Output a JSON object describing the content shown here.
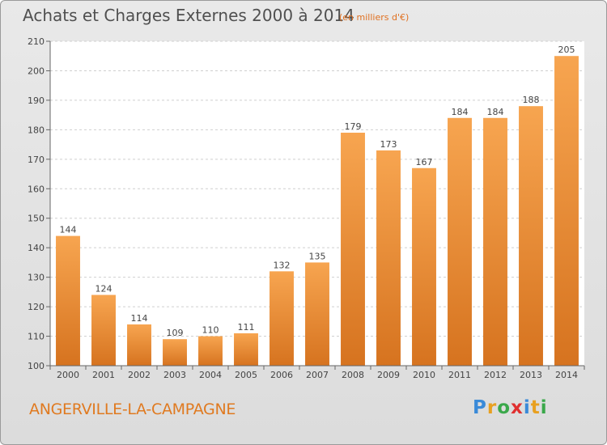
{
  "header": {
    "title": "Achats et Charges Externes 2000 à 2014",
    "subtitle": "(en milliers d'€)"
  },
  "footer": {
    "location": "ANGERVILLE-LA-CAMPAGNE",
    "logo_letters": [
      {
        "ch": "P",
        "color": "#3a8ad8"
      },
      {
        "ch": "r",
        "color": "#e8a020"
      },
      {
        "ch": "o",
        "color": "#3aa84a"
      },
      {
        "ch": "x",
        "color": "#e03030"
      },
      {
        "ch": "i",
        "color": "#3a8ad8"
      },
      {
        "ch": "t",
        "color": "#e8a020"
      },
      {
        "ch": "i",
        "color": "#3aa84a"
      }
    ]
  },
  "chart_data": {
    "type": "bar",
    "title": "Achats et Charges Externes 2000 à 2014",
    "subtitle": "(en milliers d'€)",
    "categories": [
      "2000",
      "2001",
      "2002",
      "2003",
      "2004",
      "2005",
      "2006",
      "2007",
      "2008",
      "2009",
      "2010",
      "2011",
      "2012",
      "2013",
      "2014"
    ],
    "values": [
      144,
      124,
      114,
      109,
      110,
      111,
      132,
      135,
      179,
      173,
      167,
      184,
      184,
      188,
      205
    ],
    "ylim": [
      100,
      210
    ],
    "yticks": [
      100,
      110,
      120,
      130,
      140,
      150,
      160,
      170,
      180,
      190,
      200,
      210
    ],
    "grid": true,
    "bar_color": "#f09a40",
    "bar_color_dark": "#d97424"
  }
}
